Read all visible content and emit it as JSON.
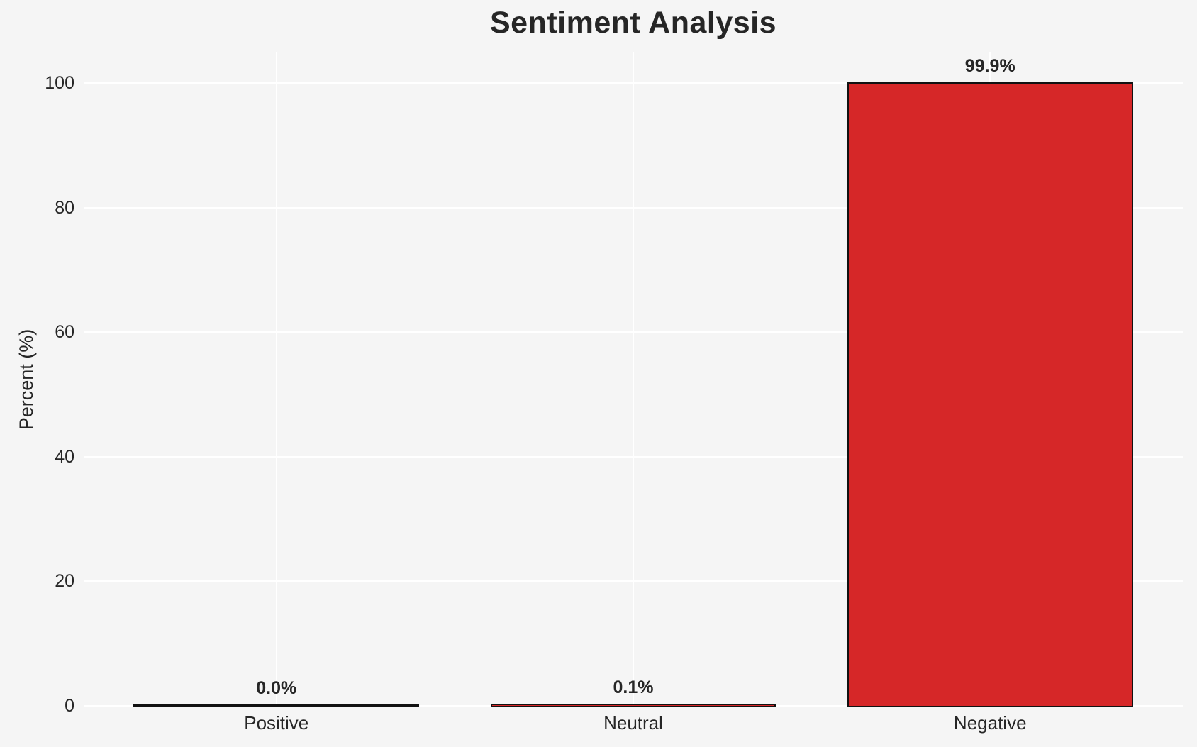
{
  "chart_data": {
    "type": "bar",
    "title": "Sentiment Analysis",
    "xlabel": "",
    "ylabel": "Percent (%)",
    "categories": [
      "Positive",
      "Neutral",
      "Negative"
    ],
    "values": [
      0.0,
      0.1,
      99.9
    ],
    "bar_value_labels": [
      "0.0%",
      "0.1%",
      "99.9%"
    ],
    "yticks": [
      0,
      20,
      40,
      60,
      80,
      100
    ],
    "ytick_labels": [
      "0",
      "20",
      "40",
      "60",
      "80",
      "100"
    ],
    "ylim": [
      0,
      105
    ],
    "legend_position": "none",
    "grid": {
      "horizontal": true,
      "vertical": true
    },
    "colors": {
      "background": "#f5f5f5",
      "grid": "#ffffff",
      "bar_fill": "#d62728",
      "bar_edge": "#121212",
      "text": "#262626"
    }
  }
}
